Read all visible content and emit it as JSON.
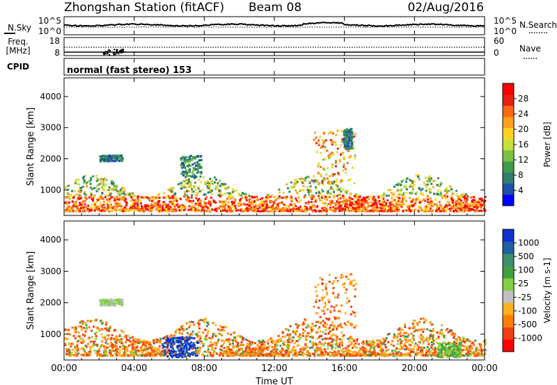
{
  "header": {
    "station": "Zhongshan Station (fitACF)",
    "beam": "Beam 08",
    "date": "02/Aug/2016"
  },
  "noise_panel": {
    "left_label": "N.Sky",
    "left_ticks": [
      "10^5",
      "10^0"
    ],
    "right_ticks": [
      "10^5",
      "10^0"
    ],
    "right_label": "N.Search"
  },
  "freq_panel": {
    "left_label_1": "Freq.",
    "left_label_2": "[MHz]",
    "left_ticks": [
      "18",
      "8"
    ],
    "right_ticks": [
      "60",
      "0"
    ],
    "right_label": "Nave"
  },
  "cpid": {
    "label": "CPID",
    "value": "normal (fast stereo) 153"
  },
  "colors": {
    "power_scale": [
      "#0000ff",
      "#1f4fa8",
      "#2e7d6e",
      "#3f9a4a",
      "#7ac142",
      "#c8e03a",
      "#ffd21f",
      "#ffa020",
      "#ff6a10",
      "#e82010",
      "#ff0000"
    ],
    "velocity_scale": [
      "#ff0000",
      "#f04010",
      "#ff8000",
      "#ffb020",
      "#c0c0c0",
      "#80d040",
      "#40a040",
      "#3f8f6f",
      "#2060a0",
      "#1030d0"
    ]
  },
  "chart_data": [
    {
      "type": "heatmap",
      "title": "Power",
      "ylabel": "Slant Range [km]",
      "xlabel": "Time UT",
      "x_range_hours": [
        0,
        24
      ],
      "ylim": [
        180,
        4600
      ],
      "y_ticks": [
        1000,
        2000,
        3000,
        4000
      ],
      "colorbar": {
        "label": "Power [dB]",
        "range": [
          0,
          32
        ],
        "ticks": [
          4,
          8,
          12,
          16,
          20,
          24,
          28
        ]
      },
      "main_band_km": [
        300,
        1500
      ],
      "patches": [
        {
          "hours": [
            2.0,
            3.3
          ],
          "range_km": [
            1900,
            2100
          ],
          "level": "low"
        },
        {
          "hours": [
            6.6,
            7.8
          ],
          "range_km": [
            1400,
            2100
          ],
          "level": "mid"
        },
        {
          "hours": [
            14.2,
            16.6
          ],
          "range_km": [
            1200,
            2900
          ],
          "level": "high"
        },
        {
          "hours": [
            15.9,
            16.4
          ],
          "range_km": [
            2300,
            2950
          ],
          "level": "low"
        }
      ]
    },
    {
      "type": "heatmap",
      "title": "Velocity",
      "ylabel": "Slant Range [km]",
      "xlabel": "Time UT",
      "x_range_hours": [
        0,
        24
      ],
      "ylim": [
        180,
        4600
      ],
      "y_ticks": [
        1000,
        2000,
        3000,
        4000
      ],
      "colorbar": {
        "label": "Velocity [m s-1]",
        "ticks": [
          "1000",
          "500",
          "100",
          "25",
          "-25",
          "-100",
          "-500",
          "-1000"
        ]
      },
      "main_band_km": [
        300,
        1500
      ],
      "patches": [
        {
          "hours": [
            2.0,
            3.3
          ],
          "range_km": [
            1900,
            2100
          ],
          "level": "slow"
        },
        {
          "hours": [
            5.8,
            7.4
          ],
          "range_km": [
            250,
            900
          ],
          "level": "toward"
        },
        {
          "hours": [
            14.2,
            16.6
          ],
          "range_km": [
            1200,
            2900
          ],
          "level": "away"
        },
        {
          "hours": [
            21.3,
            22.6
          ],
          "range_km": [
            250,
            700
          ],
          "level": "slow-positive"
        }
      ]
    }
  ],
  "x_ticks": [
    "00:00",
    "04:00",
    "08:00",
    "12:00",
    "16:00",
    "20:00",
    "00:00"
  ],
  "xlabel": "Time UT"
}
